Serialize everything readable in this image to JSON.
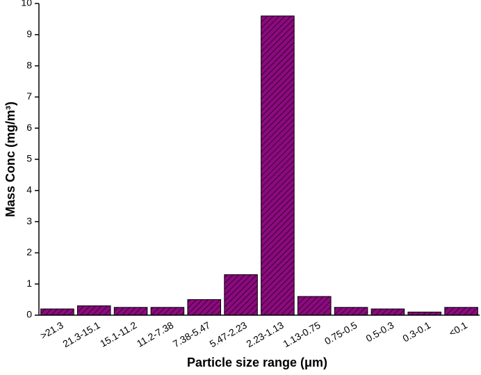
{
  "chart_data": {
    "type": "bar",
    "x_label": "Particle size range (μm)",
    "y_label": "Mass Conc (mg/m³)",
    "categories": [
      ">21.3",
      "21.3-15.1",
      "15.1-11.2",
      "11.2-7.38",
      "7.38-5.47",
      "5.47-2.23",
      "2.23-1.13",
      "1.13-0.75",
      "0.75-0.5",
      "0.5-0.3",
      "0.3-0.1",
      "<0.1"
    ],
    "values": [
      0.2,
      0.3,
      0.25,
      0.25,
      0.5,
      1.3,
      9.6,
      0.6,
      0.25,
      0.2,
      0.1,
      0.25
    ],
    "color": "#8b0a7e",
    "ylim": [
      0,
      10
    ],
    "yticks": [
      0,
      1,
      2,
      3,
      4,
      5,
      6,
      7,
      8,
      9,
      10
    ],
    "grid": false
  }
}
